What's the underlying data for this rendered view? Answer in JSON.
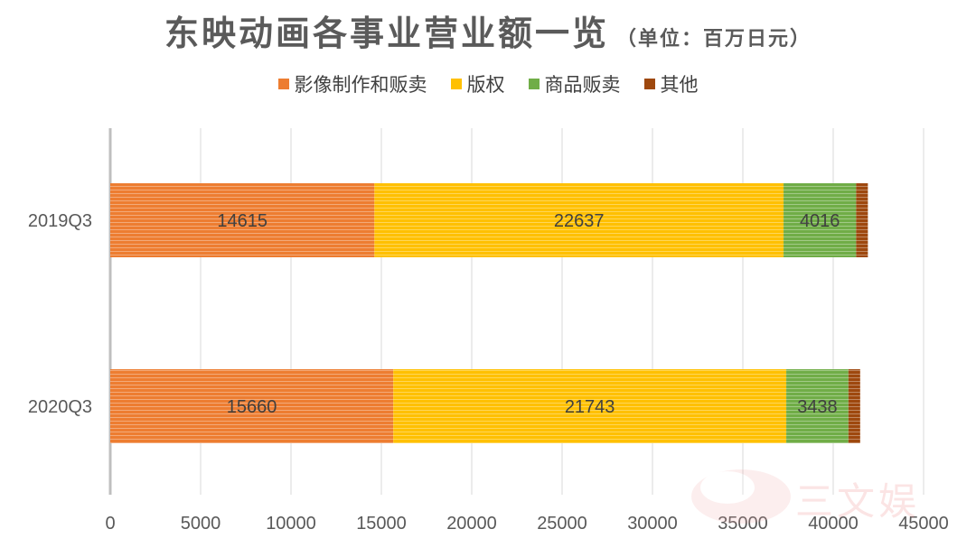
{
  "title": "东映动画各事业营业额一览",
  "unit": "（单位：百万日元）",
  "watermark": "三文娱",
  "chart_data": {
    "type": "bar",
    "orientation": "horizontal",
    "stacked": true,
    "categories": [
      "2019Q3",
      "2020Q3"
    ],
    "series": [
      {
        "name": "影像制作和贩卖",
        "color": "#ED7D31",
        "values": [
          14615,
          15660
        ]
      },
      {
        "name": "版权",
        "color": "#FFC000",
        "values": [
          22637,
          21743
        ]
      },
      {
        "name": "商品贩卖",
        "color": "#70AD47",
        "values": [
          4016,
          3438
        ]
      },
      {
        "name": "其他",
        "color": "#9E480E",
        "values": [
          650,
          650
        ]
      }
    ],
    "data_labels": [
      [
        "14615",
        "22637",
        "4016",
        ""
      ],
      [
        "15660",
        "21743",
        "3438",
        ""
      ]
    ],
    "xlim": [
      0,
      45000
    ],
    "xticks": [
      "0",
      "5000",
      "10000",
      "15000",
      "20000",
      "25000",
      "30000",
      "35000",
      "40000",
      "45000"
    ],
    "grid": true,
    "legend": "top-center"
  }
}
